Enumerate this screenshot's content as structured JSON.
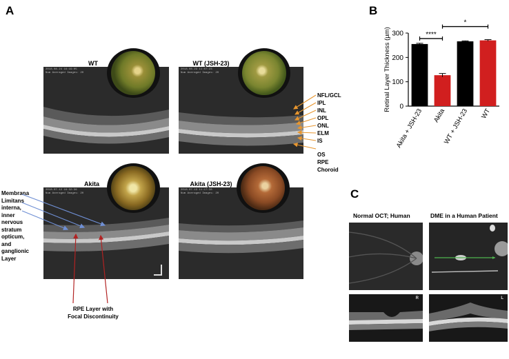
{
  "panels": {
    "a": {
      "letter": "A",
      "images": [
        {
          "label": "WT",
          "meta1": "2018.08.24 16:19:05",
          "meta2": "Num Averaged Images: 20"
        },
        {
          "label": "WT (JSH-23)",
          "meta1": "2018.08.23 11:07:23",
          "meta2": "Num Averaged Images: 20"
        },
        {
          "label": "Akita",
          "meta1": "2018.07.12 16:32:36",
          "meta2": "Num Averaged Images: 20"
        },
        {
          "label": "Akita (JSH-23)",
          "meta1": "2018.07.13 11:17:38",
          "meta2": "Num Averaged Images: 20"
        }
      ],
      "layer_labels": [
        "NFL/GCL",
        "IPL",
        "INL",
        "OPL",
        "ONL",
        "ELM",
        "IS",
        "OS",
        "RPE",
        "Choroid"
      ],
      "left_annotation": [
        "Membrana",
        "Limitans",
        "interna,",
        "inner",
        "nervous",
        "stratum",
        "opticum,",
        "and",
        "ganglionic",
        "Layer"
      ],
      "bottom_annotation": [
        "RPE Layer with",
        "Focal Discontinuity"
      ],
      "colors": {
        "layer_arrows": "#e8962e",
        "blue_arrows": "#6f8fd4",
        "red_arrows": "#b22222"
      }
    },
    "b": {
      "letter": "B"
    },
    "c": {
      "letter": "C",
      "normal_title": "Normal OCT; Human",
      "dme_title": "DME in a Human Patient",
      "eye_left": "R",
      "eye_right": "L"
    }
  },
  "chart_data": {
    "type": "bar",
    "categories": [
      "Akita + JSH-23",
      "Akita",
      "WT + JSH-23",
      "WT"
    ],
    "values": [
      255,
      127,
      266,
      270
    ],
    "errors": [
      3,
      7,
      2,
      3
    ],
    "bar_colors": [
      "#000000",
      "#d11f1f",
      "#000000",
      "#d11f1f"
    ],
    "ylabel": "Retinal Layer Thickness (µm)",
    "ylim": [
      0,
      300
    ],
    "yticks": [
      0,
      100,
      200,
      300
    ],
    "significance": [
      {
        "from": 0,
        "to": 1,
        "label": "****"
      },
      {
        "from": 1,
        "to": 3,
        "label": "*"
      }
    ]
  }
}
